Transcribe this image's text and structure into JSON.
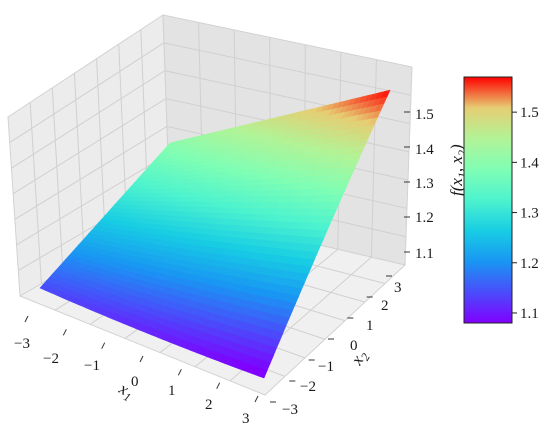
{
  "chart_data": {
    "type": "surface3d",
    "title": "",
    "xlabel": "x1",
    "ylabel": "x2",
    "zlabel": "f(x1, x2)",
    "xlim": [
      -3,
      3
    ],
    "ylim": [
      -3,
      3
    ],
    "zlim": [
      1.07,
      1.58
    ],
    "x_ticks": [
      "−3",
      "−2",
      "−1",
      "0",
      "1",
      "2",
      "3"
    ],
    "y_ticks": [
      "−3",
      "−2",
      "−1",
      "0",
      "1",
      "2",
      "3"
    ],
    "z_ticks": [
      "1.1",
      "1.2",
      "1.3",
      "1.4",
      "1.5"
    ],
    "grid": true,
    "surface_corners": {
      "x1_neg3_x2_neg3": 1.14,
      "x1_pos3_x2_neg3": 1.07,
      "x1_neg3_x2_pos3": 1.4,
      "x1_pos3_x2_pos3": 1.57
    },
    "colormap": "rainbow",
    "colorbar": {
      "range": [
        1.08,
        1.57
      ],
      "ticks": [
        "1.1",
        "1.2",
        "1.3",
        "1.4",
        "1.5"
      ],
      "placement": "right"
    }
  }
}
